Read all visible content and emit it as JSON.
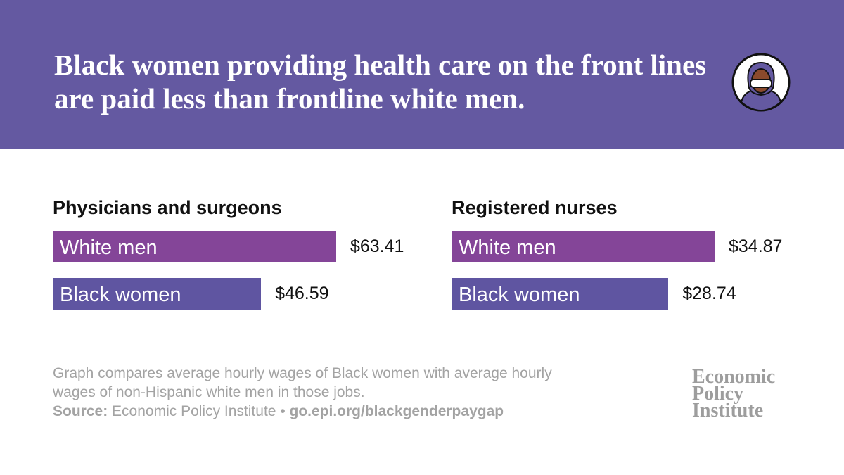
{
  "header": {
    "title": "Black women providing health care on the front lines are paid less than frontline white men."
  },
  "chart_data": [
    {
      "type": "bar",
      "title": "Physicians and surgeons",
      "categories": [
        "White men",
        "Black women"
      ],
      "values": [
        63.41,
        46.59
      ],
      "value_labels": [
        "$63.41",
        "$46.59"
      ],
      "colors": [
        "#844598",
        "#5f55a1"
      ]
    },
    {
      "type": "bar",
      "title": "Registered nurses",
      "categories": [
        "White men",
        "Black women"
      ],
      "values": [
        34.87,
        28.74
      ],
      "value_labels": [
        "$34.87",
        "$28.74"
      ],
      "colors": [
        "#844598",
        "#5f55a1"
      ]
    }
  ],
  "footer": {
    "note": "Graph compares average hourly wages of Black women with average hourly wages of non-Hispanic white men in those jobs.",
    "source_label": "Source:",
    "source": "Economic Policy Institute",
    "separator": "•",
    "link": "go.epi.org/blackgenderpaygap",
    "logo": [
      "Economic",
      "Policy",
      "Institute"
    ]
  }
}
